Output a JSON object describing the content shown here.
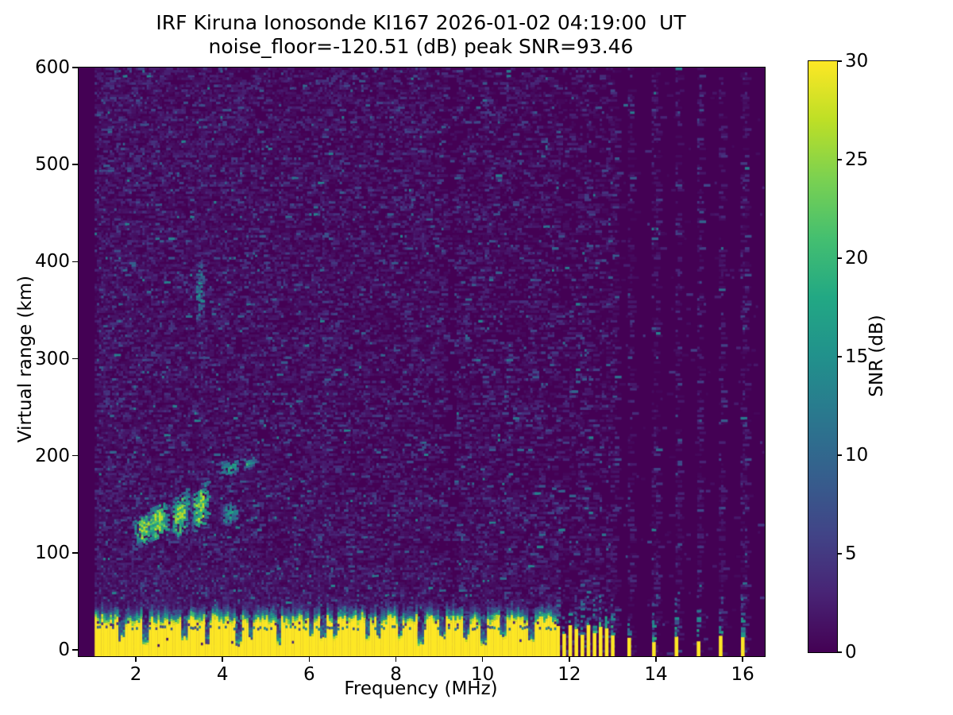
{
  "title": {
    "line1": "IRF Kiruna Ionosonde KI167 2026-01-02 04:19:00  UT",
    "line2": "noise_floor=-120.51 (dB) peak SNR=93.46"
  },
  "chart_data": {
    "type": "heatmap",
    "title_line1": "IRF Kiruna Ionosonde KI167 2026-01-02 04:19:00  UT",
    "title_line2": "noise_floor=-120.51 (dB) peak SNR=93.46",
    "xlabel": "Frequency (MHz)",
    "ylabel": "Virtual range (km)",
    "xlim": [
      0.68,
      16.51
    ],
    "ylim": [
      -6.5,
      600
    ],
    "xticks": [
      2,
      4,
      6,
      8,
      10,
      12,
      14,
      16
    ],
    "yticks": [
      0,
      100,
      200,
      300,
      400,
      500,
      600
    ],
    "grid": false,
    "noise_floor_db": -120.51,
    "peak_snr_db": 93.46,
    "colorbar": {
      "label": "SNR (dB)",
      "min": 0,
      "max": 30,
      "ticks": [
        0,
        5,
        10,
        15,
        20,
        25,
        30
      ],
      "position": "right",
      "colormap": "viridis"
    },
    "colormap_stops": [
      [
        0.0,
        "#440154"
      ],
      [
        0.1,
        "#482475"
      ],
      [
        0.2,
        "#414487"
      ],
      [
        0.3,
        "#355f8d"
      ],
      [
        0.4,
        "#2a788e"
      ],
      [
        0.5,
        "#21918c"
      ],
      [
        0.6,
        "#22a884"
      ],
      [
        0.7,
        "#44bf70"
      ],
      [
        0.8,
        "#7ad151"
      ],
      [
        0.9,
        "#bddf26"
      ],
      [
        1.0,
        "#fde725"
      ]
    ],
    "heatmap_model": {
      "seed": 419,
      "freq_start_mhz": 1.05,
      "freq_end_mhz": 16.45,
      "freq_step_mhz": 0.05,
      "range_step_km": 2.5,
      "background_noise": {
        "density_base": 0.52,
        "density_falloff_per_mhz": 0.02,
        "mean_db": 2.0,
        "max_db": 13,
        "low_range_boost_below_km": 160,
        "halo_boost_km": [
          35,
          85
        ],
        "hot_columns_mhz": [
          3.48,
          6.07,
          6.32,
          8.57,
          10.02
        ],
        "quiet_columns_mhz": [
          9.22
        ],
        "spike_column_density": 0.3
      },
      "ground_clutter": {
        "freq_start_mhz": 1.05,
        "freq_end_mhz": 11.66,
        "solid_top_km_min": 24,
        "solid_top_km_max": 33,
        "inner_layer_km": 21,
        "notch_half_width_mhz": 0.055,
        "notches_mhz": [
          1.65,
          2.2,
          3.1,
          3.62,
          4.35,
          4.62,
          5.28,
          6.02,
          6.3,
          6.57,
          7.32,
          7.58,
          8.07,
          8.55,
          9.05,
          9.6,
          10.0,
          10.45,
          11.1
        ],
        "deep_notches_mhz": [
          2.2,
          3.62,
          4.35,
          5.28,
          8.55,
          10.0
        ]
      },
      "rf_spikes": {
        "dense_mhz": [
          11.74,
          11.88,
          12.02,
          12.16,
          12.3,
          12.44,
          12.58,
          12.72,
          12.86,
          13.0
        ],
        "sparse_mhz": [
          13.38,
          13.95,
          14.47,
          14.98,
          15.49,
          16.0
        ],
        "dense_yellow_top_km": [
          14,
          26
        ],
        "sparse_yellow_top_km": [
          8,
          15
        ],
        "teal_tail_km": [
          25,
          55
        ]
      },
      "echo_blobs": [
        {
          "f": [
            1.92,
            2.48
          ],
          "r_low": [
            103,
            113
          ],
          "r_high": [
            132,
            146
          ],
          "peak_db": 21
        },
        {
          "f": [
            2.28,
            2.72
          ],
          "r_low": [
            108,
            116
          ],
          "r_high": [
            143,
            156
          ],
          "peak_db": 22
        },
        {
          "f": [
            2.8,
            3.18
          ],
          "r_low": [
            110,
            120
          ],
          "r_high": [
            152,
            166
          ],
          "peak_db": 21
        },
        {
          "f": [
            3.28,
            3.66
          ],
          "r_low": [
            120,
            130
          ],
          "r_high": [
            160,
            174
          ],
          "peak_db": 22
        },
        {
          "f": [
            3.92,
            4.34
          ],
          "r_low": [
            176,
            181
          ],
          "r_high": [
            193,
            199
          ],
          "peak_db": 15
        },
        {
          "f": [
            3.96,
            4.3
          ],
          "r_low": [
            124,
            130
          ],
          "r_high": [
            148,
            154
          ],
          "peak_db": 13
        },
        {
          "f": [
            4.44,
            4.72
          ],
          "r_low": [
            184,
            187
          ],
          "r_high": [
            195,
            199
          ],
          "peak_db": 14
        },
        {
          "f": [
            3.34,
            3.56
          ],
          "r_low": [
            334,
            340
          ],
          "r_high": [
            396,
            402
          ],
          "peak_db": 11,
          "sparse": true
        }
      ]
    }
  }
}
